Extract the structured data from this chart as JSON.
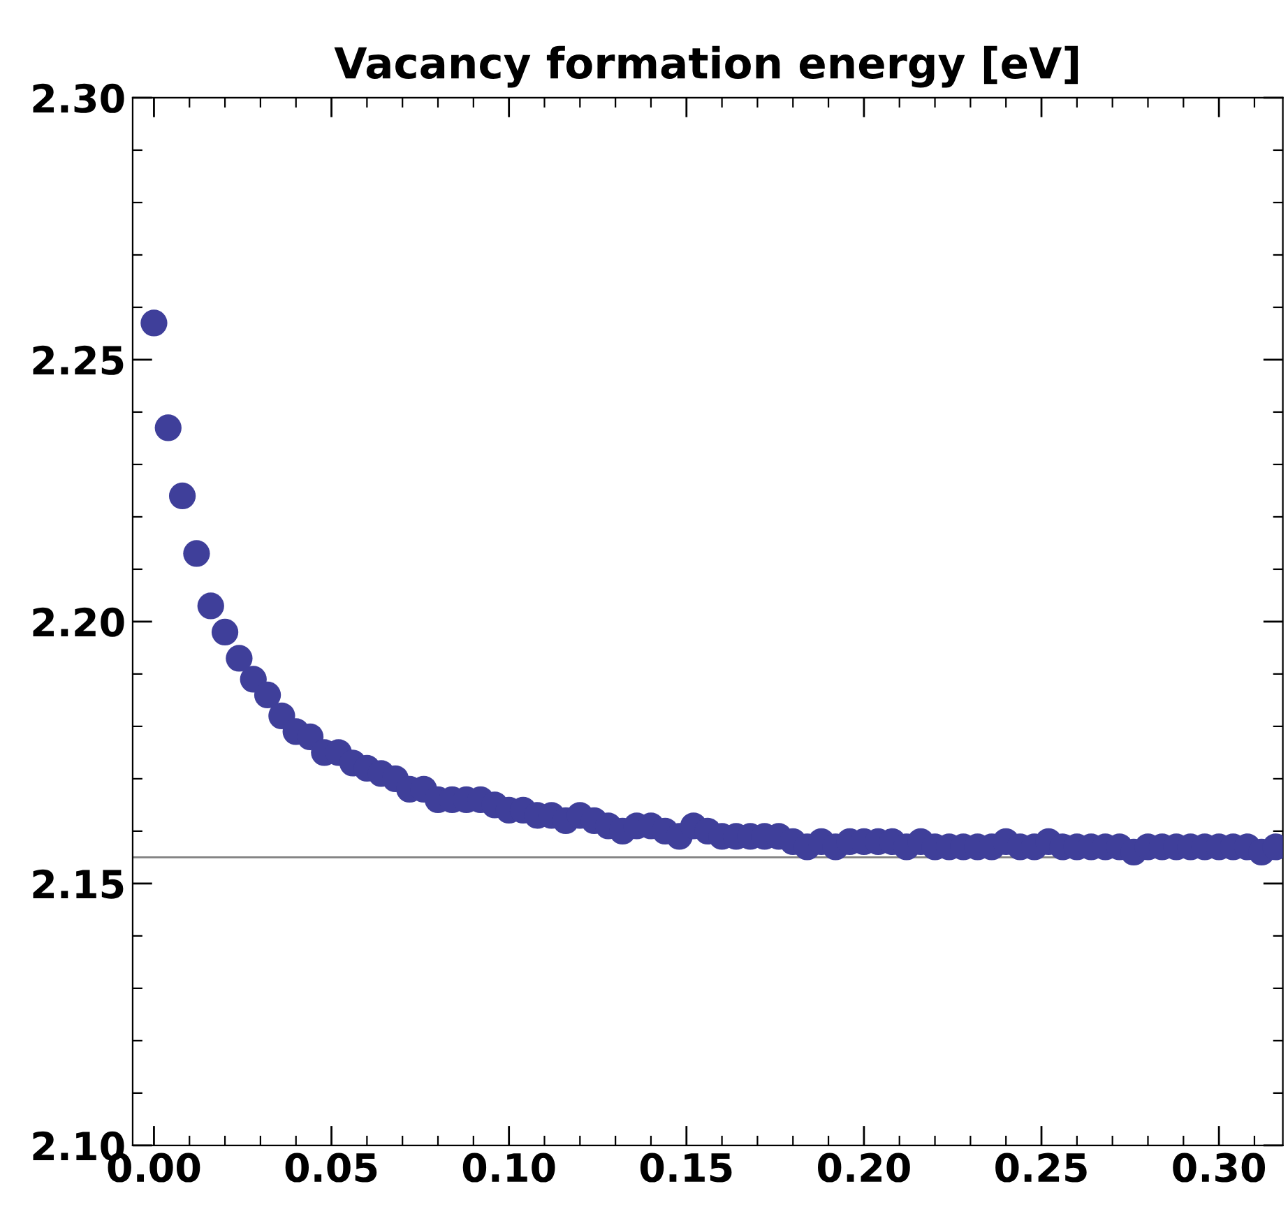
{
  "chart_data": {
    "type": "scatter",
    "title": "Vacancy formation energy [eV]",
    "x": [
      0.0,
      0.004,
      0.008,
      0.012,
      0.016,
      0.02,
      0.024,
      0.028,
      0.032,
      0.036,
      0.04,
      0.044,
      0.048,
      0.052,
      0.056,
      0.06,
      0.064,
      0.068,
      0.072,
      0.076,
      0.08,
      0.084,
      0.088,
      0.092,
      0.096,
      0.1,
      0.104,
      0.108,
      0.112,
      0.116,
      0.12,
      0.124,
      0.128,
      0.132,
      0.136,
      0.14,
      0.144,
      0.148,
      0.152,
      0.156,
      0.16,
      0.164,
      0.168,
      0.172,
      0.176,
      0.18,
      0.184,
      0.188,
      0.192,
      0.196,
      0.2,
      0.204,
      0.208,
      0.212,
      0.216,
      0.22,
      0.224,
      0.228,
      0.232,
      0.236,
      0.24,
      0.244,
      0.248,
      0.252,
      0.256,
      0.26,
      0.264,
      0.268,
      0.272,
      0.276,
      0.28,
      0.284,
      0.288,
      0.292,
      0.296,
      0.3,
      0.304,
      0.308,
      0.312,
      0.316
    ],
    "series": [
      {
        "color": "#3f3f9a",
        "values": [
          2.257,
          2.237,
          2.224,
          2.213,
          2.203,
          2.198,
          2.193,
          2.189,
          2.186,
          2.182,
          2.179,
          2.178,
          2.175,
          2.175,
          2.173,
          2.172,
          2.171,
          2.17,
          2.168,
          2.168,
          2.166,
          2.166,
          2.166,
          2.166,
          2.165,
          2.164,
          2.164,
          2.163,
          2.163,
          2.162,
          2.163,
          2.162,
          2.161,
          2.16,
          2.161,
          2.161,
          2.16,
          2.159,
          2.161,
          2.16,
          2.159,
          2.159,
          2.159,
          2.159,
          2.159,
          2.158,
          2.157,
          2.158,
          2.157,
          2.158,
          2.158,
          2.158,
          2.158,
          2.157,
          2.158,
          2.157,
          2.157,
          2.157,
          2.157,
          2.157,
          2.158,
          2.157,
          2.157,
          2.158,
          2.157,
          2.157,
          2.157,
          2.157,
          2.157,
          2.156,
          2.157,
          2.157,
          2.157,
          2.157,
          2.157,
          2.157,
          2.157,
          2.157,
          2.156,
          2.157
        ]
      }
    ],
    "marker": "circle",
    "xlim": [
      -0.006,
      0.318
    ],
    "ylim": [
      2.1,
      2.3
    ],
    "xticks": [
      {
        "value": 0.0,
        "label": "0.00"
      },
      {
        "value": 0.05,
        "label": "0.05"
      },
      {
        "value": 0.1,
        "label": "0.10"
      },
      {
        "value": 0.15,
        "label": "0.15"
      },
      {
        "value": 0.2,
        "label": "0.20"
      },
      {
        "value": 0.25,
        "label": "0.25"
      },
      {
        "value": 0.3,
        "label": "0.30"
      }
    ],
    "yticks": [
      {
        "value": 2.1,
        "label": "2.10"
      },
      {
        "value": 2.15,
        "label": "2.15"
      },
      {
        "value": 2.2,
        "label": "2.20"
      },
      {
        "value": 2.25,
        "label": "2.25"
      },
      {
        "value": 2.3,
        "label": "2.30"
      }
    ],
    "ref_lines": [
      {
        "axis": "y",
        "value": 2.155,
        "color": "#808080"
      }
    ],
    "grid": false
  }
}
